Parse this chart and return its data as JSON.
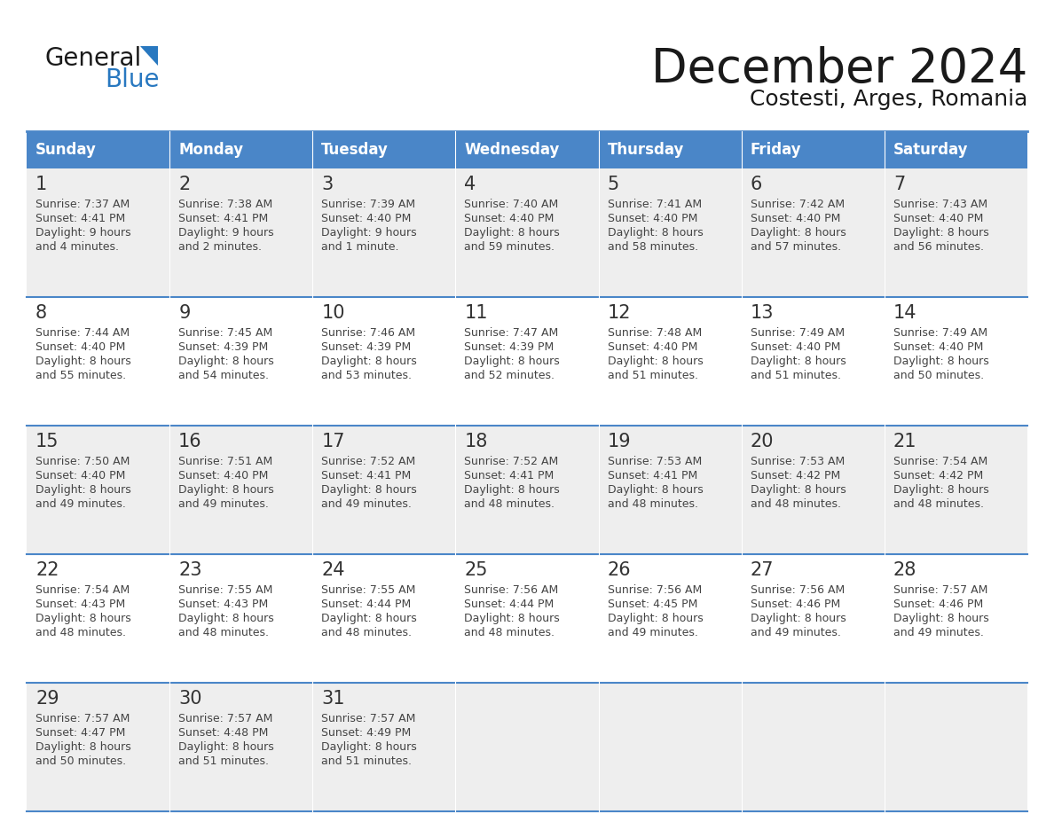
{
  "title": "December 2024",
  "subtitle": "Costesti, Arges, Romania",
  "header_color": "#4a86c8",
  "header_text_color": "#ffffff",
  "days_of_week": [
    "Sunday",
    "Monday",
    "Tuesday",
    "Wednesday",
    "Thursday",
    "Friday",
    "Saturday"
  ],
  "background_color": "#ffffff",
  "row_bg_odd": "#eeeeee",
  "row_bg_even": "#ffffff",
  "cell_text_color": "#444444",
  "border_color": "#4a86c8",
  "calendar_data": [
    [
      {
        "day": 1,
        "sunrise": "7:37 AM",
        "sunset": "4:41 PM",
        "daylight": "9 hours",
        "daylight2": "and 4 minutes."
      },
      {
        "day": 2,
        "sunrise": "7:38 AM",
        "sunset": "4:41 PM",
        "daylight": "9 hours",
        "daylight2": "and 2 minutes."
      },
      {
        "day": 3,
        "sunrise": "7:39 AM",
        "sunset": "4:40 PM",
        "daylight": "9 hours",
        "daylight2": "and 1 minute."
      },
      {
        "day": 4,
        "sunrise": "7:40 AM",
        "sunset": "4:40 PM",
        "daylight": "8 hours",
        "daylight2": "and 59 minutes."
      },
      {
        "day": 5,
        "sunrise": "7:41 AM",
        "sunset": "4:40 PM",
        "daylight": "8 hours",
        "daylight2": "and 58 minutes."
      },
      {
        "day": 6,
        "sunrise": "7:42 AM",
        "sunset": "4:40 PM",
        "daylight": "8 hours",
        "daylight2": "and 57 minutes."
      },
      {
        "day": 7,
        "sunrise": "7:43 AM",
        "sunset": "4:40 PM",
        "daylight": "8 hours",
        "daylight2": "and 56 minutes."
      }
    ],
    [
      {
        "day": 8,
        "sunrise": "7:44 AM",
        "sunset": "4:40 PM",
        "daylight": "8 hours",
        "daylight2": "and 55 minutes."
      },
      {
        "day": 9,
        "sunrise": "7:45 AM",
        "sunset": "4:39 PM",
        "daylight": "8 hours",
        "daylight2": "and 54 minutes."
      },
      {
        "day": 10,
        "sunrise": "7:46 AM",
        "sunset": "4:39 PM",
        "daylight": "8 hours",
        "daylight2": "and 53 minutes."
      },
      {
        "day": 11,
        "sunrise": "7:47 AM",
        "sunset": "4:39 PM",
        "daylight": "8 hours",
        "daylight2": "and 52 minutes."
      },
      {
        "day": 12,
        "sunrise": "7:48 AM",
        "sunset": "4:40 PM",
        "daylight": "8 hours",
        "daylight2": "and 51 minutes."
      },
      {
        "day": 13,
        "sunrise": "7:49 AM",
        "sunset": "4:40 PM",
        "daylight": "8 hours",
        "daylight2": "and 51 minutes."
      },
      {
        "day": 14,
        "sunrise": "7:49 AM",
        "sunset": "4:40 PM",
        "daylight": "8 hours",
        "daylight2": "and 50 minutes."
      }
    ],
    [
      {
        "day": 15,
        "sunrise": "7:50 AM",
        "sunset": "4:40 PM",
        "daylight": "8 hours",
        "daylight2": "and 49 minutes."
      },
      {
        "day": 16,
        "sunrise": "7:51 AM",
        "sunset": "4:40 PM",
        "daylight": "8 hours",
        "daylight2": "and 49 minutes."
      },
      {
        "day": 17,
        "sunrise": "7:52 AM",
        "sunset": "4:41 PM",
        "daylight": "8 hours",
        "daylight2": "and 49 minutes."
      },
      {
        "day": 18,
        "sunrise": "7:52 AM",
        "sunset": "4:41 PM",
        "daylight": "8 hours",
        "daylight2": "and 48 minutes."
      },
      {
        "day": 19,
        "sunrise": "7:53 AM",
        "sunset": "4:41 PM",
        "daylight": "8 hours",
        "daylight2": "and 48 minutes."
      },
      {
        "day": 20,
        "sunrise": "7:53 AM",
        "sunset": "4:42 PM",
        "daylight": "8 hours",
        "daylight2": "and 48 minutes."
      },
      {
        "day": 21,
        "sunrise": "7:54 AM",
        "sunset": "4:42 PM",
        "daylight": "8 hours",
        "daylight2": "and 48 minutes."
      }
    ],
    [
      {
        "day": 22,
        "sunrise": "7:54 AM",
        "sunset": "4:43 PM",
        "daylight": "8 hours",
        "daylight2": "and 48 minutes."
      },
      {
        "day": 23,
        "sunrise": "7:55 AM",
        "sunset": "4:43 PM",
        "daylight": "8 hours",
        "daylight2": "and 48 minutes."
      },
      {
        "day": 24,
        "sunrise": "7:55 AM",
        "sunset": "4:44 PM",
        "daylight": "8 hours",
        "daylight2": "and 48 minutes."
      },
      {
        "day": 25,
        "sunrise": "7:56 AM",
        "sunset": "4:44 PM",
        "daylight": "8 hours",
        "daylight2": "and 48 minutes."
      },
      {
        "day": 26,
        "sunrise": "7:56 AM",
        "sunset": "4:45 PM",
        "daylight": "8 hours",
        "daylight2": "and 49 minutes."
      },
      {
        "day": 27,
        "sunrise": "7:56 AM",
        "sunset": "4:46 PM",
        "daylight": "8 hours",
        "daylight2": "and 49 minutes."
      },
      {
        "day": 28,
        "sunrise": "7:57 AM",
        "sunset": "4:46 PM",
        "daylight": "8 hours",
        "daylight2": "and 49 minutes."
      }
    ],
    [
      {
        "day": 29,
        "sunrise": "7:57 AM",
        "sunset": "4:47 PM",
        "daylight": "8 hours",
        "daylight2": "and 50 minutes."
      },
      {
        "day": 30,
        "sunrise": "7:57 AM",
        "sunset": "4:48 PM",
        "daylight": "8 hours",
        "daylight2": "and 51 minutes."
      },
      {
        "day": 31,
        "sunrise": "7:57 AM",
        "sunset": "4:49 PM",
        "daylight": "8 hours",
        "daylight2": "and 51 minutes."
      },
      null,
      null,
      null,
      null
    ]
  ]
}
